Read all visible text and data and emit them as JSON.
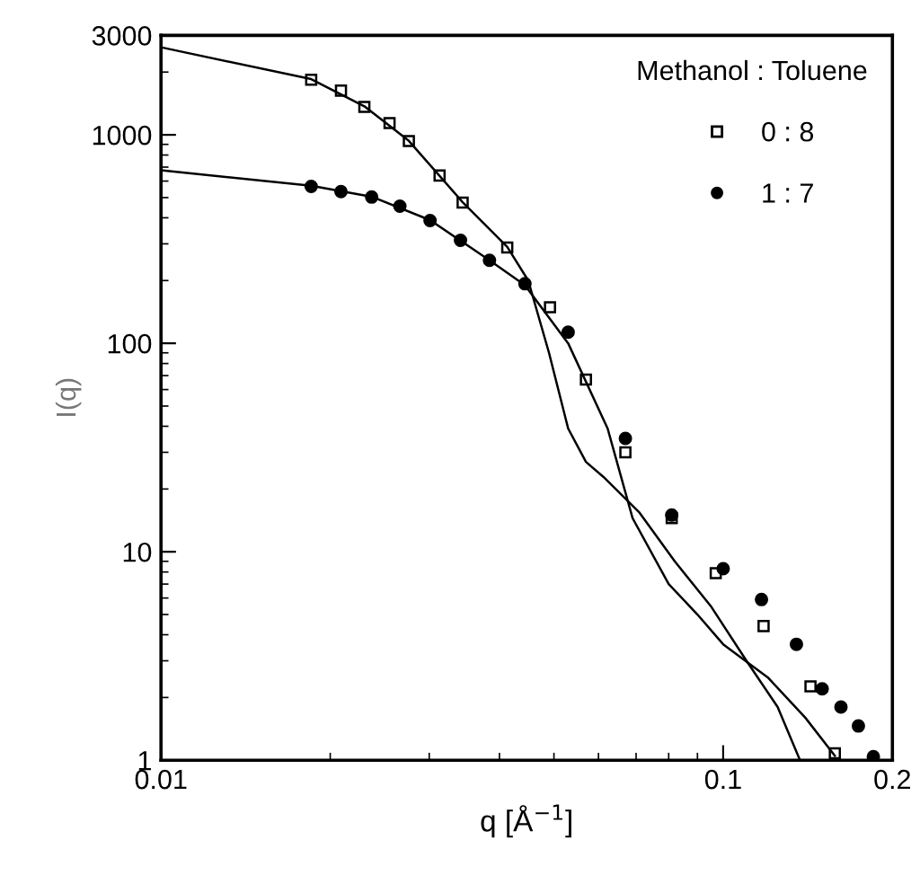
{
  "chart_data": {
    "type": "scatter",
    "xlabel": "q [Å$^{−1}$]",
    "ylabel": "I(q)",
    "legend_title": "Methanol : Toluene",
    "legend": "top right",
    "log": "xy",
    "grid": false,
    "xlim": [
      0.01,
      0.2
    ],
    "xticks": [
      0.01,
      0.1,
      0.2
    ],
    "ylim": [
      1,
      3000
    ],
    "yticks": [
      1,
      10,
      100,
      1000,
      3000
    ],
    "series": [
      {
        "name": "0 : 8",
        "marker": "square",
        "color": "#000000",
        "x": [
          0.0185,
          0.0209,
          0.023,
          0.0255,
          0.0276,
          0.0313,
          0.0344,
          0.0413,
          0.0492,
          0.057,
          0.067,
          0.081,
          0.097,
          0.118,
          0.143,
          0.158
        ],
        "values": [
          1837,
          1630,
          1362,
          1138,
          933,
          638,
          473,
          288,
          149,
          67,
          30,
          14.5,
          7.9,
          4.4,
          2.26,
          1.08
        ]
      },
      {
        "name": "1 : 7",
        "marker": "circle",
        "color": "#000000",
        "x": [
          0.0185,
          0.0209,
          0.0237,
          0.0266,
          0.0301,
          0.0341,
          0.0384,
          0.0444,
          0.053,
          0.067,
          0.081,
          0.1,
          0.117,
          0.135,
          0.15,
          0.162,
          0.174,
          0.185
        ],
        "values": [
          566,
          534,
          503,
          455,
          388,
          312,
          250,
          193,
          113,
          35,
          15,
          8.3,
          5.9,
          3.6,
          2.2,
          1.8,
          1.46,
          1.04
        ]
      },
      {
        "type": "line",
        "marker": "none",
        "line_style": "solid",
        "color": "#000000",
        "x": [
          0.01,
          0.0185,
          0.023,
          0.0276,
          0.0344,
          0.0413,
          0.045,
          0.049,
          0.053,
          0.057,
          0.0612,
          0.071,
          0.082,
          0.095,
          0.11,
          0.125,
          0.137
        ],
        "values": [
          2630,
          1850,
          1370,
          935,
          475,
          290,
          200,
          90,
          39,
          27,
          22.9,
          15.4,
          9,
          5.5,
          3,
          1.8,
          1.0
        ]
      },
      {
        "type": "line",
        "marker": "none",
        "line_style": "solid",
        "color": "#000000",
        "x": [
          0.01,
          0.0185,
          0.0237,
          0.0301,
          0.0384,
          0.0444,
          0.053,
          0.0623,
          0.069,
          0.08,
          0.09,
          0.1,
          0.12,
          0.14,
          0.158
        ],
        "values": [
          676,
          570,
          505,
          390,
          250,
          190,
          100,
          39,
          14.5,
          7,
          5,
          3.6,
          2.5,
          1.6,
          1.05
        ]
      }
    ]
  }
}
